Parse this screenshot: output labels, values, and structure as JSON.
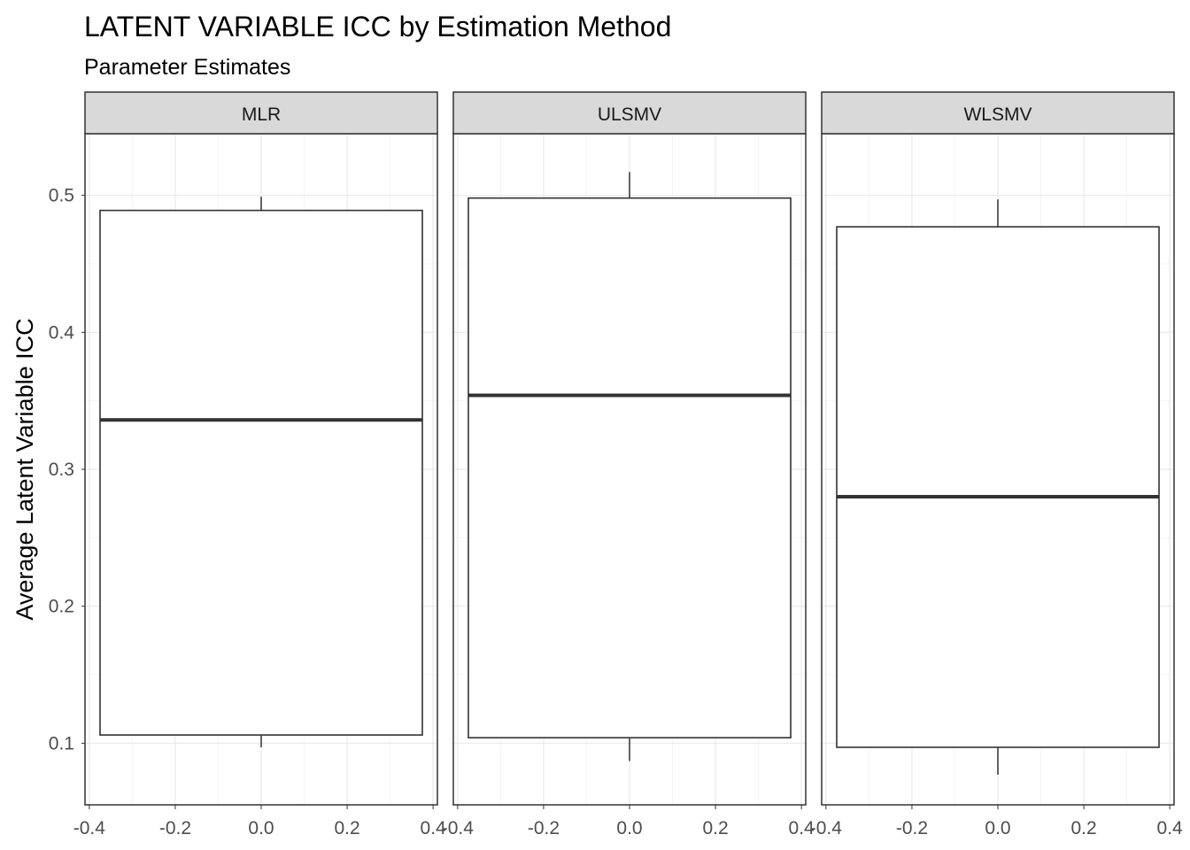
{
  "chart_data": {
    "type": "boxplot",
    "title": "LATENT VARIABLE ICC by Estimation Method",
    "subtitle": "Parameter Estimates",
    "ylabel": "Average Latent Variable ICC",
    "xlabel": "",
    "ylim": [
      0.055,
      0.545
    ],
    "xlim": [
      -0.41,
      0.41
    ],
    "y_ticks": [
      0.1,
      0.2,
      0.3,
      0.4,
      0.5
    ],
    "y_tick_labels": [
      "0.1",
      "0.2",
      "0.3",
      "0.4",
      "0.5"
    ],
    "x_ticks": [
      -0.4,
      -0.2,
      0.0,
      0.2,
      0.4
    ],
    "x_tick_labels": [
      "-0.4",
      "-0.2",
      "0.0",
      "0.2",
      "0.4"
    ],
    "grid": true,
    "theme": "bw",
    "box_x_range": [
      -0.375,
      0.375
    ],
    "panels": [
      {
        "name": "MLR",
        "whisker_low": 0.097,
        "q1": 0.106,
        "median": 0.336,
        "q3": 0.489,
        "whisker_high": 0.499
      },
      {
        "name": "ULSMV",
        "whisker_low": 0.087,
        "q1": 0.104,
        "median": 0.354,
        "q3": 0.498,
        "whisker_high": 0.517
      },
      {
        "name": "WLSMV",
        "whisker_low": 0.077,
        "q1": 0.097,
        "median": 0.28,
        "q3": 0.477,
        "whisker_high": 0.497
      }
    ],
    "colors": {
      "box_outline": "#333333",
      "strip_fill": "#d9d9d9",
      "strip_border": "#333333",
      "panel_border": "#333333",
      "grid_major": "#ebebeb",
      "grid_minor": "#f5f5f5"
    }
  }
}
